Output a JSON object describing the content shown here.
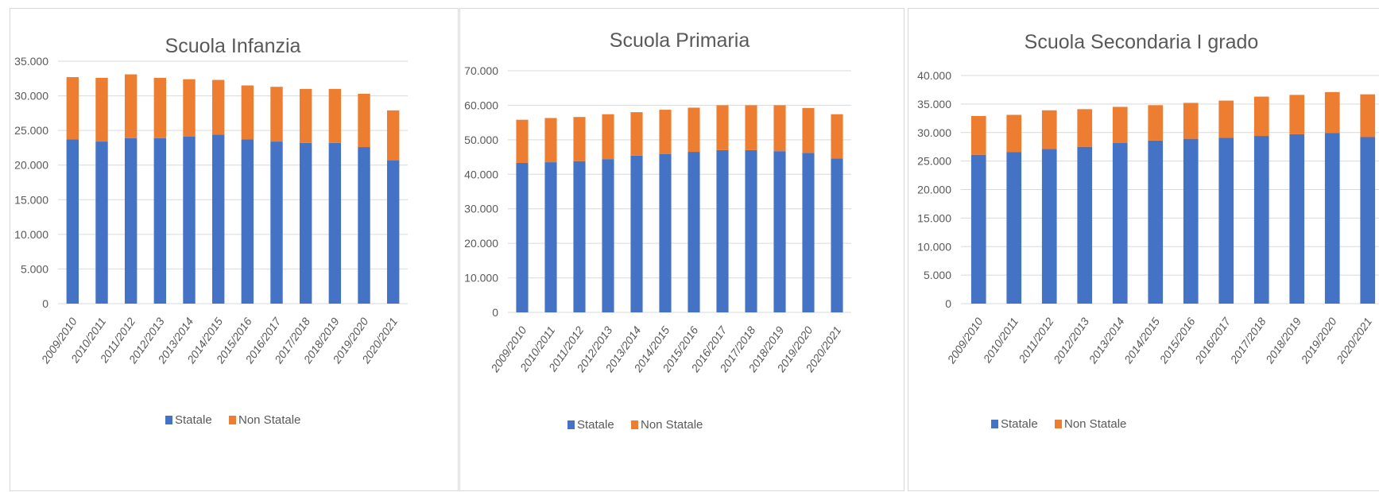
{
  "colors": {
    "statale": "#4472c4",
    "non_statale": "#ed7d31"
  },
  "chart_data": [
    {
      "type": "bar",
      "stacked": true,
      "title": "Scuola Infanzia",
      "categories": [
        "2009/2010",
        "2010/2011",
        "2011/2012",
        "2012/2013",
        "2013/2014",
        "2014/2015",
        "2015/2016",
        "2016/2017",
        "2017/2018",
        "2018/2019",
        "2019/2020",
        "2020/2021"
      ],
      "series": [
        {
          "name": "Statale",
          "values": [
            23700,
            23400,
            23900,
            23900,
            24100,
            24400,
            23700,
            23400,
            23200,
            23200,
            22600,
            20700
          ]
        },
        {
          "name": "Non Statale",
          "values": [
            9000,
            9200,
            9200,
            8700,
            8300,
            7900,
            7800,
            7900,
            7800,
            7800,
            7700,
            7200
          ]
        }
      ],
      "ylim": [
        0,
        35000
      ],
      "yticks": [
        "0",
        "5.000",
        "10.000",
        "15.000",
        "20.000",
        "25.000",
        "30.000",
        "35.000"
      ],
      "legend": "bottom",
      "grid": true
    },
    {
      "type": "bar",
      "stacked": true,
      "title": "Scuola Primaria",
      "categories": [
        "2009/2010",
        "2010/2011",
        "2011/2012",
        "2012/2013",
        "2013/2014",
        "2014/2015",
        "2015/2016",
        "2016/2017",
        "2017/2018",
        "2018/2019",
        "2019/2020",
        "2020/2021"
      ],
      "series": [
        {
          "name": "Statale",
          "values": [
            43300,
            43500,
            43800,
            44400,
            45400,
            45900,
            46500,
            47000,
            47000,
            46700,
            46200,
            44600
          ]
        },
        {
          "name": "Non Statale",
          "values": [
            12500,
            12800,
            12800,
            13000,
            12600,
            12800,
            12800,
            13000,
            13000,
            13300,
            13000,
            12800
          ]
        }
      ],
      "ylim": [
        0,
        70000
      ],
      "yticks": [
        "0",
        "10.000",
        "20.000",
        "30.000",
        "40.000",
        "50.000",
        "60.000",
        "70.000"
      ],
      "legend": "bottom",
      "grid": true
    },
    {
      "type": "bar",
      "stacked": true,
      "title": "Scuola Secondaria I grado",
      "categories": [
        "2009/2010",
        "2010/2011",
        "2011/2012",
        "2012/2013",
        "2013/2014",
        "2014/2015",
        "2015/2016",
        "2016/2017",
        "2017/2018",
        "2018/2019",
        "2019/2020",
        "2020/2021"
      ],
      "series": [
        {
          "name": "Statale",
          "values": [
            26100,
            26600,
            27100,
            27500,
            28200,
            28600,
            28900,
            29100,
            29400,
            29700,
            29900,
            29200
          ]
        },
        {
          "name": "Non Statale",
          "values": [
            6800,
            6500,
            6800,
            6600,
            6300,
            6200,
            6300,
            6500,
            6900,
            6900,
            7200,
            7500
          ]
        }
      ],
      "ylim": [
        0,
        40000
      ],
      "yticks": [
        "0",
        "5.000",
        "10.000",
        "15.000",
        "20.000",
        "25.000",
        "30.000",
        "35.000",
        "40.000"
      ],
      "legend": "bottom",
      "grid": true
    }
  ]
}
